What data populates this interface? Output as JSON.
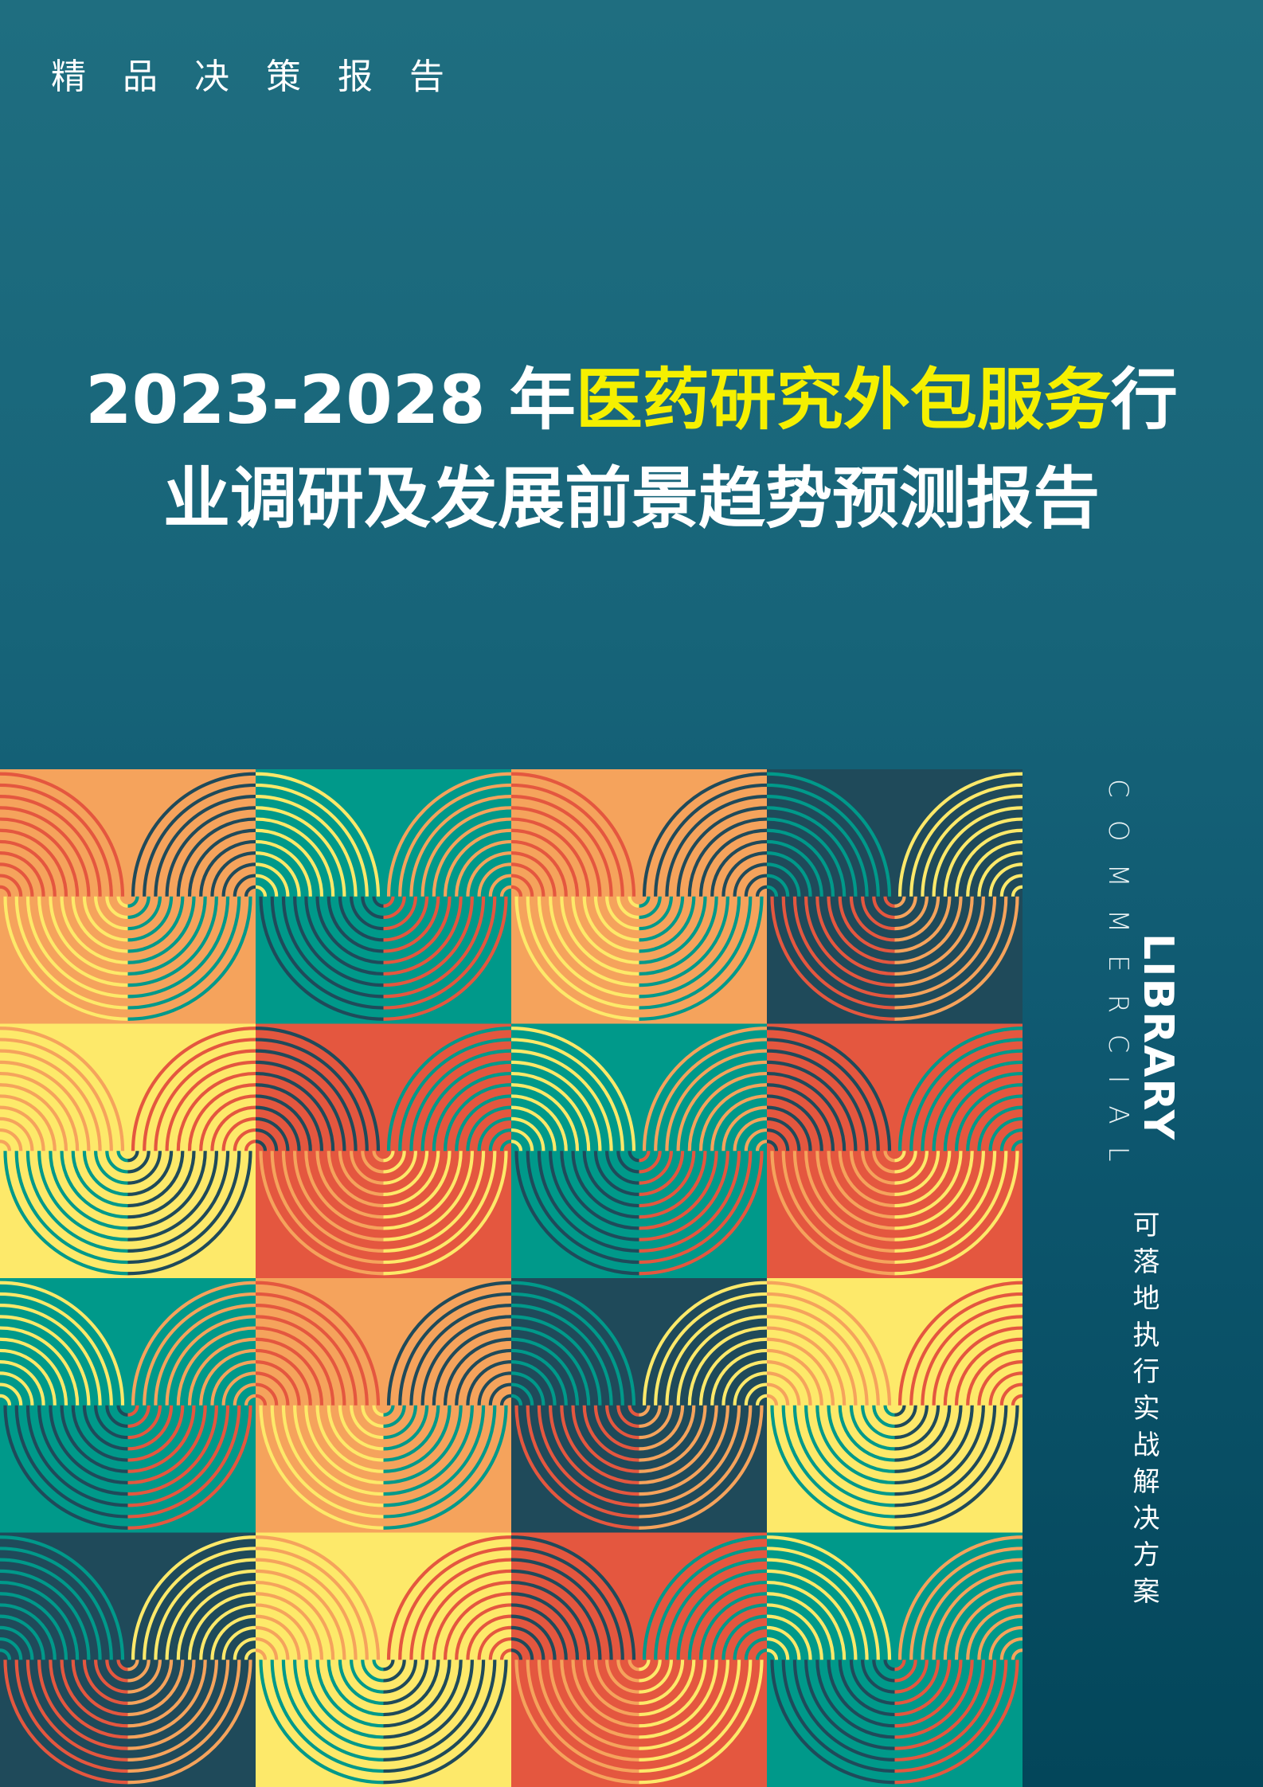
{
  "series_label": "精品决策报告",
  "title": {
    "prefix": "2023-2028 年",
    "highlight": "医药研究外包服务",
    "suffix_line1": "行",
    "line2": "业调研及发展前景趋势预测报告"
  },
  "brand": {
    "commercial": "COMMERCIAL",
    "library": "LIBRARY"
  },
  "slogan": "可落地执行实战解决方案",
  "colors": {
    "highlight": "#f5f000",
    "orange": "#f5a35c",
    "teal": "#00998a",
    "navy": "#1f4a5a",
    "red": "#e4573f",
    "yellow": "#fde96a"
  },
  "pattern_tiles": [
    [
      "orange",
      "teal",
      "orange",
      "navy"
    ],
    [
      "yellow",
      "red",
      "teal",
      "red"
    ],
    [
      "teal",
      "orange",
      "navy",
      "yellow"
    ],
    [
      "navy",
      "yellow",
      "red",
      "teal"
    ]
  ]
}
